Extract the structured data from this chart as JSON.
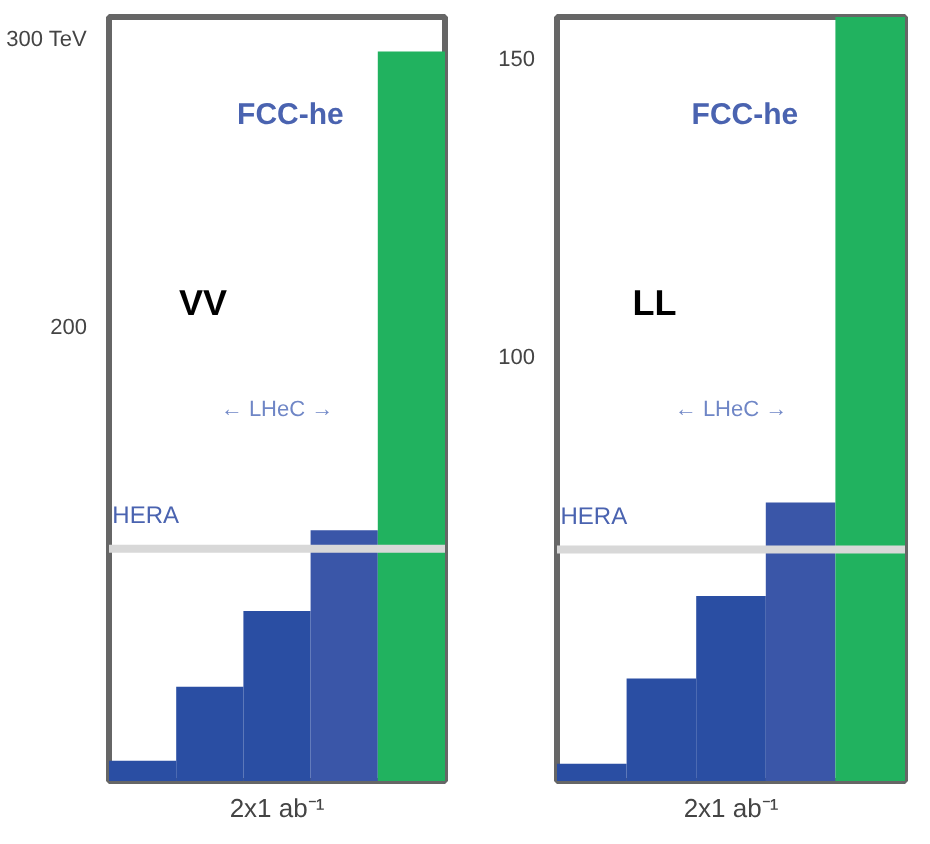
{
  "chart_data": [
    {
      "type": "bar",
      "categories": [
        null,
        null,
        null,
        null,
        null
      ],
      "base": [
        43,
        43,
        43,
        43,
        43
      ],
      "values": [
        7,
        32.7,
        59,
        87,
        253
      ],
      "colors": [
        "#2a4ea3",
        "#2a4ea3",
        "#2a4ea3",
        "#3a56a8",
        "#21b25f"
      ],
      "ylim": [
        43,
        308
      ],
      "yticks": [
        {
          "value": 300,
          "label": "300 TeV"
        },
        200
      ],
      "grid": false,
      "ref_lines": [
        {
          "axis": "y",
          "value": 123.6,
          "label": "HERA",
          "color": "#d8d8d8"
        }
      ],
      "annotations": [
        "VV",
        "FCC-he",
        "← LHeC →",
        "2x1 ab⁻¹"
      ]
    },
    {
      "type": "bar",
      "categories": [
        null,
        null,
        null,
        null,
        null
      ],
      "base": [
        28.8,
        28.8,
        28.8,
        28.8,
        28.8
      ],
      "values": [
        2.9,
        17.2,
        31,
        46.7,
        128.1
      ],
      "colors": [
        "#2a4ea3",
        "#2a4ea3",
        "#2a4ea3",
        "#3a56a8",
        "#21b25f"
      ],
      "ylim": [
        28.8,
        156.9
      ],
      "yticks": [
        150,
        100
      ],
      "grid": false,
      "ref_lines": [
        {
          "axis": "y",
          "value": 67.6,
          "label": "HERA",
          "color": "#d8d8d8"
        }
      ],
      "annotations": [
        "LL",
        "FCC-he",
        "← LHeC →",
        "2x1 ab⁻¹"
      ]
    }
  ]
}
